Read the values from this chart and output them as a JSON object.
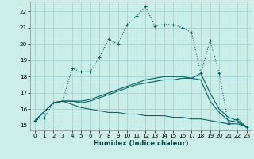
{
  "xlabel": "Humidex (Indice chaleur)",
  "background_color": "#cceee8",
  "grid_color": "#99cccc",
  "line_color": "#006666",
  "xlim": [
    -0.5,
    23.5
  ],
  "ylim": [
    14.7,
    22.6
  ],
  "xticks": [
    0,
    1,
    2,
    3,
    4,
    5,
    6,
    7,
    8,
    9,
    10,
    11,
    12,
    13,
    14,
    15,
    16,
    17,
    18,
    19,
    20,
    21,
    22,
    23
  ],
  "yticks": [
    15,
    16,
    17,
    18,
    19,
    20,
    21,
    22
  ],
  "line1_x": [
    0,
    1,
    2,
    3,
    4,
    5,
    6,
    7,
    8,
    9,
    10,
    11,
    12,
    13,
    14,
    15,
    16,
    17,
    18,
    19,
    20,
    21,
    22,
    23
  ],
  "line1_y": [
    15.3,
    15.5,
    16.4,
    16.5,
    18.5,
    18.3,
    18.3,
    19.2,
    20.3,
    20.0,
    21.2,
    21.7,
    22.3,
    21.1,
    21.2,
    21.2,
    21.0,
    20.7,
    18.2,
    20.2,
    18.2,
    15.1,
    15.4,
    14.9
  ],
  "line2_x": [
    0,
    2,
    3,
    4,
    5,
    6,
    7,
    8,
    9,
    10,
    11,
    12,
    13,
    14,
    15,
    16,
    17,
    18,
    19,
    20,
    21,
    22,
    23
  ],
  "line2_y": [
    15.3,
    16.4,
    16.5,
    16.5,
    16.4,
    16.5,
    16.7,
    16.9,
    17.1,
    17.3,
    17.5,
    17.6,
    17.7,
    17.8,
    17.8,
    17.9,
    17.9,
    18.2,
    17.0,
    16.0,
    15.5,
    15.3,
    14.9
  ],
  "line3_x": [
    0,
    2,
    3,
    4,
    5,
    6,
    7,
    8,
    9,
    10,
    11,
    12,
    13,
    14,
    15,
    16,
    17,
    18,
    19,
    20,
    21,
    22,
    23
  ],
  "line3_y": [
    15.3,
    16.4,
    16.5,
    16.3,
    16.1,
    16.0,
    15.9,
    15.8,
    15.8,
    15.7,
    15.7,
    15.6,
    15.6,
    15.6,
    15.5,
    15.5,
    15.4,
    15.4,
    15.3,
    15.2,
    15.1,
    15.1,
    14.9
  ],
  "line4_x": [
    0,
    2,
    3,
    4,
    5,
    6,
    7,
    8,
    9,
    10,
    11,
    12,
    13,
    14,
    15,
    16,
    17,
    18,
    19,
    20,
    21,
    22,
    23
  ],
  "line4_y": [
    15.3,
    16.4,
    16.5,
    16.5,
    16.5,
    16.6,
    16.8,
    17.0,
    17.2,
    17.4,
    17.6,
    17.8,
    17.9,
    18.0,
    18.0,
    18.0,
    17.9,
    17.8,
    16.5,
    15.8,
    15.3,
    15.2,
    14.9
  ],
  "xlabel_fontsize": 6.0,
  "tick_fontsize": 5.2
}
